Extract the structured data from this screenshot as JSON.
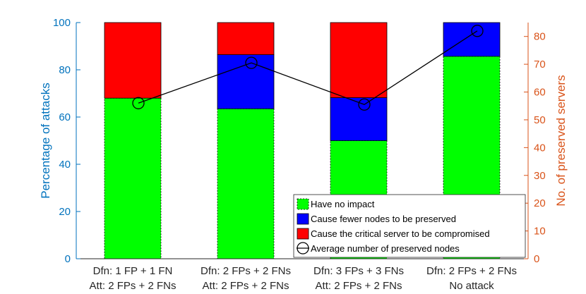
{
  "chart_data": {
    "type": "bar",
    "stacked": true,
    "categories": [
      [
        "Dfn: 1 FP + 1 FN",
        "Att: 2 FPs + 2 FNs"
      ],
      [
        "Dfn: 2 FPs + 2 FNs",
        "Att: 2 FPs + 2 FNs"
      ],
      [
        "Dfn: 3 FPs + 3 FNs",
        "Att: 2 FPs + 2 FNs"
      ],
      [
        "Dfn: 2 FPs + 2 FNs",
        "No attack"
      ]
    ],
    "series": [
      {
        "name": "Have no impact",
        "color": "#00ff00",
        "axis": "left",
        "values": [
          68,
          63.5,
          50,
          85.7
        ]
      },
      {
        "name": "Cause fewer nodes to be preserved",
        "color": "#0000ff",
        "axis": "left",
        "values": [
          0,
          22.9,
          18.2,
          14.3
        ]
      },
      {
        "name": "Cause the critical server to be compromised",
        "color": "#ff0000",
        "axis": "left",
        "values": [
          32,
          13.6,
          31.8,
          0
        ]
      }
    ],
    "line_series": {
      "name": "Average number of preserved nodes",
      "axis": "right",
      "color": "#000000",
      "values": [
        56,
        70.5,
        55.5,
        82
      ]
    },
    "ylabel": "Percentage of attacks",
    "ylabel_right": "No. of preserved servers",
    "ylim": [
      0,
      100
    ],
    "ylim_right": [
      0,
      85
    ],
    "yticks": [
      0,
      20,
      40,
      60,
      80,
      100
    ],
    "yticks_right": [
      0,
      10,
      20,
      30,
      40,
      50,
      60,
      70,
      80
    ],
    "left_axis_color": "#0072bd",
    "right_axis_color": "#d95319",
    "grid": false,
    "legend_position": "bottom-right"
  }
}
